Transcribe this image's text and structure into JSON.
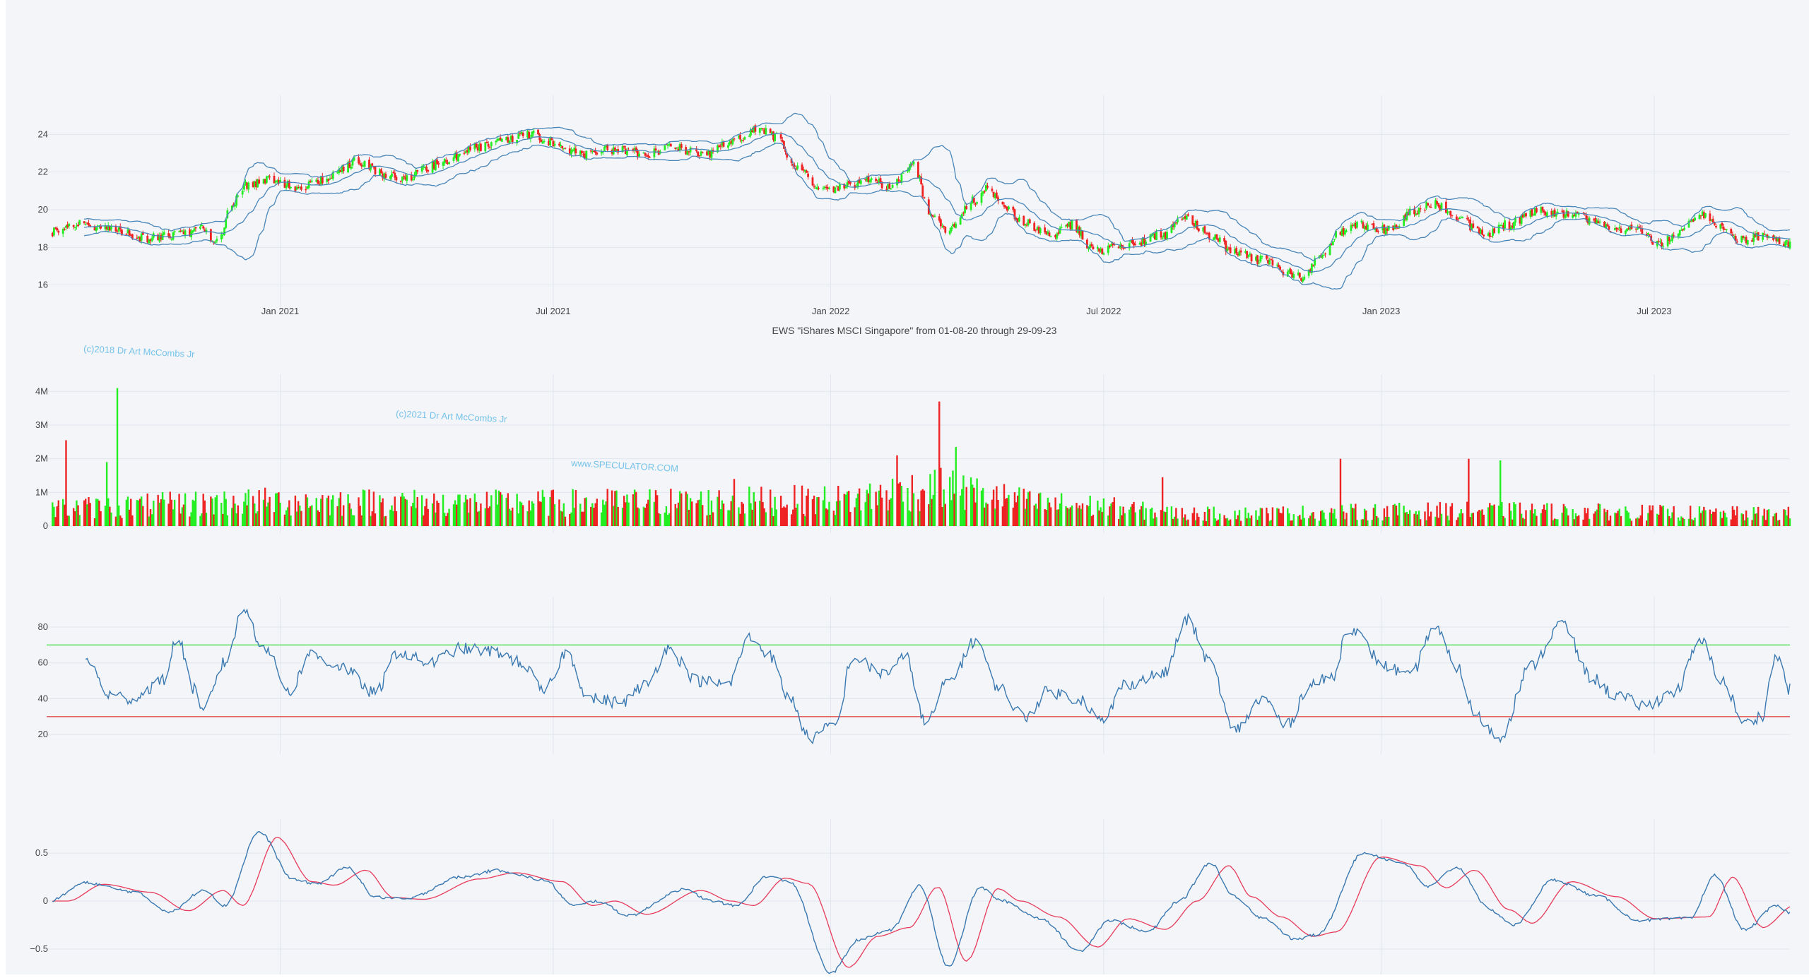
{
  "colors": {
    "background": "#f3f5f9",
    "grid": "#e1e5ed",
    "up": "#22ee22",
    "down": "#ee2222",
    "band": "#4a86b8",
    "oscillator": "#3a78b0",
    "signal": "#e83a5a",
    "overbought": "#33dd33",
    "oversold": "#dd3333"
  },
  "watermarks": [
    "(c)2018 Dr Art McCombs Jr",
    "(c)2021 Dr Art McCombs Jr",
    "www.SPECULATOR.COM"
  ],
  "chart_data": [
    {
      "id": "price",
      "type": "candlestick",
      "title": "EWS \"iShares MSCI Singapore\" from 01-08-20 through 29-09-23",
      "x_ticks": [
        "Jan 2021",
        "Jul 2021",
        "Jan 2022",
        "Jul 2022",
        "Jan 2023",
        "Jul 2023"
      ],
      "y_ticks": [
        "16",
        "18",
        "20",
        "22",
        "24"
      ],
      "ylim": [
        15.2,
        25.7
      ],
      "x_range": [
        "2020-08-01",
        "2023-09-29"
      ],
      "overlays": [
        "Bollinger upper",
        "moving average",
        "Bollinger lower"
      ],
      "close_anchors": [
        [
          "2020-08-01",
          18.8
        ],
        [
          "2020-08-20",
          19.3
        ],
        [
          "2020-09-15",
          18.9
        ],
        [
          "2020-10-05",
          18.5
        ],
        [
          "2020-10-25",
          18.7
        ],
        [
          "2020-11-10",
          19.0
        ],
        [
          "2020-11-20",
          18.2
        ],
        [
          "2020-12-01",
          20.4
        ],
        [
          "2020-12-10",
          21.3
        ],
        [
          "2020-12-25",
          21.6
        ],
        [
          "2021-01-15",
          21.2
        ],
        [
          "2021-02-05",
          21.8
        ],
        [
          "2021-02-20",
          22.6
        ],
        [
          "2021-03-10",
          21.9
        ],
        [
          "2021-03-25",
          21.7
        ],
        [
          "2021-04-15",
          22.4
        ],
        [
          "2021-05-10",
          23.3
        ],
        [
          "2021-05-25",
          23.6
        ],
        [
          "2021-06-15",
          24.0
        ],
        [
          "2021-07-05",
          23.5
        ],
        [
          "2021-07-20",
          22.9
        ],
        [
          "2021-08-10",
          23.2
        ],
        [
          "2021-09-01",
          23.0
        ],
        [
          "2021-09-20",
          23.3
        ],
        [
          "2021-10-10",
          22.9
        ],
        [
          "2021-10-30",
          23.8
        ],
        [
          "2021-11-15",
          24.3
        ],
        [
          "2021-11-25",
          23.9
        ],
        [
          "2021-12-10",
          22.2
        ],
        [
          "2021-12-25",
          21.0
        ],
        [
          "2022-01-10",
          21.2
        ],
        [
          "2022-01-25",
          21.6
        ],
        [
          "2022-02-10",
          21.2
        ],
        [
          "2022-02-25",
          22.4
        ],
        [
          "2022-03-08",
          19.7
        ],
        [
          "2022-03-20",
          18.9
        ],
        [
          "2022-04-05",
          20.5
        ],
        [
          "2022-04-15",
          21.2
        ],
        [
          "2022-04-25",
          20.3
        ],
        [
          "2022-05-10",
          19.3
        ],
        [
          "2022-05-25",
          18.6
        ],
        [
          "2022-06-10",
          19.2
        ],
        [
          "2022-06-25",
          17.8
        ],
        [
          "2022-07-10",
          18.0
        ],
        [
          "2022-07-25",
          18.3
        ],
        [
          "2022-08-10",
          18.7
        ],
        [
          "2022-08-25",
          19.6
        ],
        [
          "2022-09-10",
          18.6
        ],
        [
          "2022-09-25",
          17.8
        ],
        [
          "2022-10-15",
          17.3
        ],
        [
          "2022-10-30",
          16.7
        ],
        [
          "2022-11-10",
          16.4
        ],
        [
          "2022-11-20",
          17.4
        ],
        [
          "2022-12-05",
          18.8
        ],
        [
          "2022-12-20",
          19.2
        ],
        [
          "2023-01-05",
          18.9
        ],
        [
          "2023-01-25",
          20.0
        ],
        [
          "2023-02-05",
          20.3
        ],
        [
          "2023-02-20",
          19.6
        ],
        [
          "2023-03-10",
          18.7
        ],
        [
          "2023-03-25",
          19.2
        ],
        [
          "2023-04-15",
          19.9
        ],
        [
          "2023-05-05",
          19.8
        ],
        [
          "2023-05-20",
          19.5
        ],
        [
          "2023-06-05",
          19.0
        ],
        [
          "2023-06-20",
          18.9
        ],
        [
          "2023-07-05",
          18.2
        ],
        [
          "2023-07-20",
          19.0
        ],
        [
          "2023-08-01",
          19.7
        ],
        [
          "2023-08-10",
          19.3
        ],
        [
          "2023-08-25",
          18.4
        ],
        [
          "2023-09-10",
          18.6
        ],
        [
          "2023-09-29",
          18.2
        ]
      ]
    },
    {
      "id": "volume",
      "type": "bar",
      "y_ticks": [
        "0",
        "1M",
        "2M",
        "3M",
        "4M"
      ],
      "ylim": [
        0,
        4300000
      ],
      "base_level_anchors": [
        [
          "2020-08-01",
          600000
        ],
        [
          "2021-01-01",
          800000
        ],
        [
          "2021-06-01",
          750000
        ],
        [
          "2021-10-01",
          800000
        ],
        [
          "2022-01-01",
          850000
        ],
        [
          "2022-03-10",
          1200000
        ],
        [
          "2022-06-01",
          700000
        ],
        [
          "2022-09-01",
          400000
        ],
        [
          "2023-03-01",
          500000
        ],
        [
          "2023-09-29",
          400000
        ]
      ],
      "spikes": [
        [
          "2020-09-15",
          4100000,
          "up"
        ],
        [
          "2022-03-14",
          3700000,
          "down"
        ],
        [
          "2022-02-20",
          2800000,
          "down"
        ],
        [
          "2020-08-12",
          2550000,
          "down"
        ],
        [
          "2020-08-30",
          2300000,
          "down"
        ],
        [
          "2020-08-22",
          2250000,
          "down"
        ],
        [
          "2022-03-25",
          2350000,
          "up"
        ],
        [
          "2020-09-08",
          1900000,
          "up"
        ],
        [
          "2022-02-14",
          2100000,
          "down"
        ],
        [
          "2021-10-29",
          1400000,
          "down"
        ],
        [
          "2022-12-05",
          2000000,
          "down"
        ],
        [
          "2023-02-28",
          2000000,
          "down"
        ],
        [
          "2023-03-21",
          1950000,
          "up"
        ],
        [
          "2022-08-09",
          1450000,
          "down"
        ]
      ]
    },
    {
      "id": "rsi",
      "type": "line",
      "y_ticks": [
        "20",
        "40",
        "60",
        "80"
      ],
      "ylim": [
        13,
        93
      ],
      "overbought": 70,
      "oversold": 30,
      "anchors": [
        [
          "2020-08-25",
          62
        ],
        [
          "2020-09-10",
          42
        ],
        [
          "2020-09-25",
          40
        ],
        [
          "2020-10-15",
          50
        ],
        [
          "2020-10-25",
          74
        ],
        [
          "2020-11-05",
          45
        ],
        [
          "2020-11-10",
          32
        ],
        [
          "2020-11-25",
          60
        ],
        [
          "2020-12-08",
          90
        ],
        [
          "2020-12-20",
          70
        ],
        [
          "2021-01-08",
          44
        ],
        [
          "2021-01-20",
          65
        ],
        [
          "2021-02-10",
          58
        ],
        [
          "2021-03-05",
          43
        ],
        [
          "2021-03-20",
          66
        ],
        [
          "2021-04-10",
          60
        ],
        [
          "2021-05-01",
          68
        ],
        [
          "2021-05-25",
          66
        ],
        [
          "2021-06-10",
          60
        ],
        [
          "2021-06-25",
          44
        ],
        [
          "2021-07-10",
          66
        ],
        [
          "2021-07-25",
          40
        ],
        [
          "2021-08-15",
          38
        ],
        [
          "2021-09-01",
          48
        ],
        [
          "2021-09-15",
          68
        ],
        [
          "2021-10-05",
          50
        ],
        [
          "2021-10-25",
          48
        ],
        [
          "2021-11-08",
          74
        ],
        [
          "2021-11-20",
          66
        ],
        [
          "2021-12-05",
          40
        ],
        [
          "2021-12-18",
          18
        ],
        [
          "2022-01-05",
          26
        ],
        [
          "2022-01-15",
          63
        ],
        [
          "2022-02-05",
          54
        ],
        [
          "2022-02-20",
          63
        ],
        [
          "2022-03-05",
          26
        ],
        [
          "2022-03-20",
          50
        ],
        [
          "2022-04-08",
          73
        ],
        [
          "2022-04-20",
          48
        ],
        [
          "2022-05-10",
          30
        ],
        [
          "2022-05-25",
          44
        ],
        [
          "2022-06-15",
          40
        ],
        [
          "2022-06-30",
          27
        ],
        [
          "2022-07-15",
          48
        ],
        [
          "2022-08-10",
          54
        ],
        [
          "2022-08-25",
          84
        ],
        [
          "2022-09-10",
          60
        ],
        [
          "2022-09-25",
          22
        ],
        [
          "2022-10-15",
          40
        ],
        [
          "2022-10-30",
          25
        ],
        [
          "2022-11-15",
          48
        ],
        [
          "2022-11-30",
          52
        ],
        [
          "2022-12-10",
          80
        ],
        [
          "2023-01-05",
          58
        ],
        [
          "2023-01-20",
          52
        ],
        [
          "2023-02-05",
          80
        ],
        [
          "2023-02-20",
          58
        ],
        [
          "2023-03-05",
          30
        ],
        [
          "2023-03-20",
          18
        ],
        [
          "2023-04-10",
          58
        ],
        [
          "2023-05-01",
          82
        ],
        [
          "2023-05-20",
          52
        ],
        [
          "2023-06-05",
          42
        ],
        [
          "2023-06-25",
          36
        ],
        [
          "2023-07-15",
          44
        ],
        [
          "2023-08-01",
          72
        ],
        [
          "2023-08-15",
          50
        ],
        [
          "2023-08-30",
          26
        ],
        [
          "2023-09-10",
          30
        ],
        [
          "2023-09-20",
          64
        ],
        [
          "2023-09-29",
          45
        ]
      ]
    },
    {
      "id": "macd",
      "type": "line",
      "y_ticks": [
        "−0.5",
        "0",
        "0.5"
      ],
      "ylim": [
        -0.75,
        0.78
      ],
      "series": [
        {
          "key": "macd",
          "anchors": [
            [
              "2020-08-01",
              0.0
            ],
            [
              "2020-08-25",
              0.19
            ],
            [
              "2020-09-25",
              0.1
            ],
            [
              "2020-10-20",
              -0.11
            ],
            [
              "2020-11-12",
              0.12
            ],
            [
              "2020-11-25",
              -0.05
            ],
            [
              "2020-12-18",
              0.72
            ],
            [
              "2021-01-10",
              0.22
            ],
            [
              "2021-01-25",
              0.18
            ],
            [
              "2021-02-15",
              0.35
            ],
            [
              "2021-03-05",
              0.04
            ],
            [
              "2021-03-25",
              0.02
            ],
            [
              "2021-05-01",
              0.25
            ],
            [
              "2021-05-25",
              0.32
            ],
            [
              "2021-06-25",
              0.22
            ],
            [
              "2021-07-15",
              -0.05
            ],
            [
              "2021-07-30",
              0.0
            ],
            [
              "2021-08-20",
              -0.15
            ],
            [
              "2021-09-25",
              0.12
            ],
            [
              "2021-10-15",
              0.0
            ],
            [
              "2021-10-30",
              -0.05
            ],
            [
              "2021-11-20",
              0.26
            ],
            [
              "2021-12-05",
              0.2
            ],
            [
              "2022-01-01",
              -0.75
            ],
            [
              "2022-01-20",
              -0.4
            ],
            [
              "2022-02-10",
              -0.3
            ],
            [
              "2022-03-01",
              0.16
            ],
            [
              "2022-03-20",
              -0.68
            ],
            [
              "2022-04-10",
              0.14
            ],
            [
              "2022-04-25",
              0.0
            ],
            [
              "2022-05-20",
              -0.18
            ],
            [
              "2022-06-15",
              -0.52
            ],
            [
              "2022-07-05",
              -0.2
            ],
            [
              "2022-07-30",
              -0.32
            ],
            [
              "2022-08-20",
              0.0
            ],
            [
              "2022-09-10",
              0.4
            ],
            [
              "2022-09-25",
              0.05
            ],
            [
              "2022-10-15",
              -0.18
            ],
            [
              "2022-11-05",
              -0.4
            ],
            [
              "2022-11-20",
              -0.35
            ],
            [
              "2022-12-20",
              0.5
            ],
            [
              "2023-01-15",
              0.4
            ],
            [
              "2023-02-01",
              0.15
            ],
            [
              "2023-02-20",
              0.35
            ],
            [
              "2023-03-15",
              -0.1
            ],
            [
              "2023-03-30",
              -0.25
            ],
            [
              "2023-04-25",
              0.22
            ],
            [
              "2023-05-25",
              0.05
            ],
            [
              "2023-06-20",
              -0.2
            ],
            [
              "2023-07-25",
              -0.18
            ],
            [
              "2023-08-10",
              0.27
            ],
            [
              "2023-08-30",
              -0.3
            ],
            [
              "2023-09-20",
              -0.05
            ],
            [
              "2023-09-29",
              -0.12
            ]
          ]
        },
        {
          "key": "signal",
          "lag_days": 12
        }
      ]
    }
  ]
}
